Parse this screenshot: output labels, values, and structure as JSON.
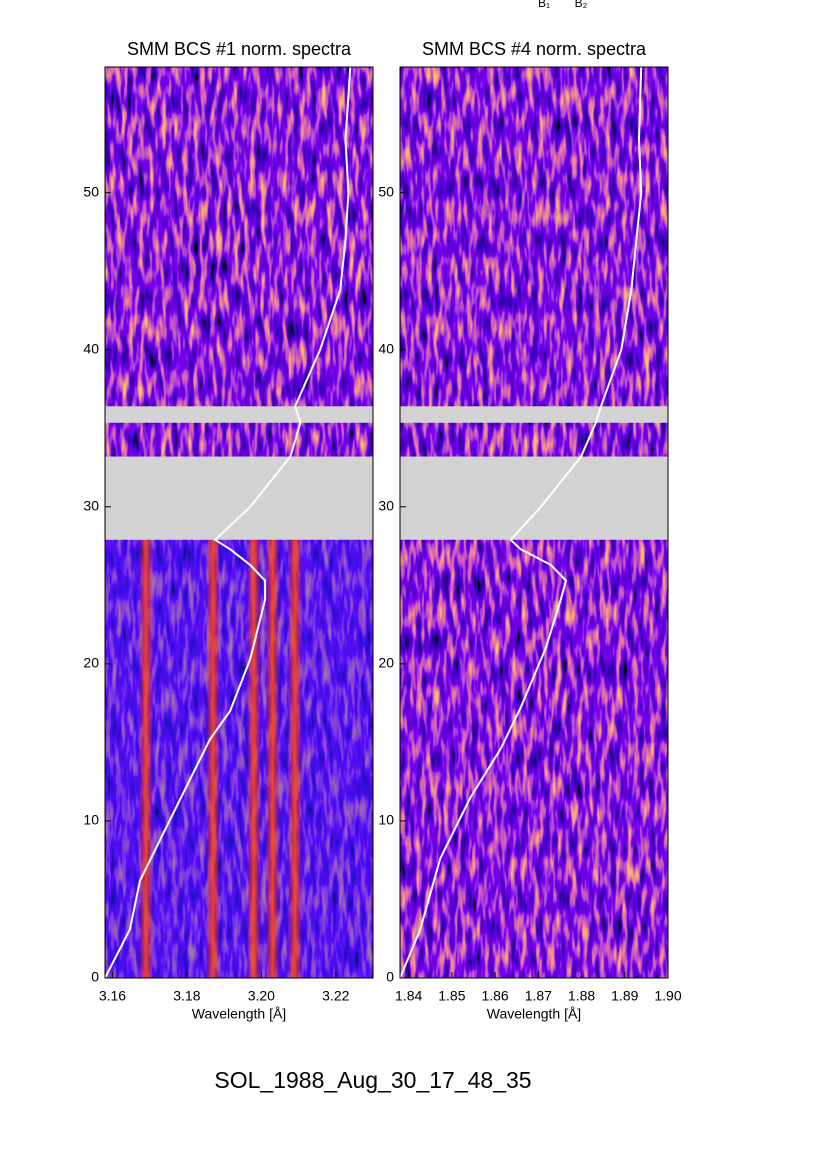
{
  "top_labels": [
    "B₁",
    "B₂"
  ],
  "footer": "SOL_1988_Aug_30_17_48_35",
  "chart_data": [
    {
      "type": "spectrogram",
      "title": "SMM BCS #1 norm. spectra",
      "x_label": "Wavelength [Å]",
      "xlim": [
        3.158,
        3.23
      ],
      "xticks": [
        3.16,
        3.18,
        {
          "value": 3.2,
          "label": "3.20"
        },
        3.22
      ],
      "ylim": [
        0,
        58
      ],
      "yticks": [
        0,
        10,
        20,
        30,
        40,
        50
      ],
      "gaps": [
        [
          27.9,
          33.2
        ],
        [
          35.35,
          36.4
        ]
      ],
      "gap_color": "#d3d3d3",
      "line_centers": [
        3.169,
        3.187,
        3.198,
        3.203,
        3.209
      ],
      "curve": {
        "color": "#ffffff",
        "x": [
          3.158,
          3.1647,
          3.1674,
          3.1728,
          3.1795,
          3.1862,
          3.1916,
          3.197,
          3.201,
          3.201,
          3.197,
          3.1916,
          3.1876,
          3.197,
          3.2078,
          3.2105,
          3.2091,
          3.2158,
          3.2212,
          3.2226,
          3.2234,
          3.2226,
          3.2239
        ],
        "y": [
          0,
          3.1,
          6.2,
          8.8,
          12,
          15.2,
          17,
          20.3,
          24.1,
          25.3,
          26.3,
          27.3,
          27.9,
          30,
          33.2,
          35.35,
          36.4,
          40,
          43.8,
          47,
          50,
          53.4,
          58
        ]
      }
    },
    {
      "type": "spectrogram",
      "title": "SMM BCS #4 norm. spectra",
      "x_label": "Wavelength [Å]",
      "xlim": [
        1.838,
        1.9
      ],
      "xticks": [
        1.84,
        1.85,
        1.86,
        1.87,
        1.88,
        1.89,
        {
          "value": 1.9,
          "label": "1.90"
        }
      ],
      "ylim": [
        0,
        58
      ],
      "yticks": [
        0,
        10,
        20,
        30,
        40,
        50
      ],
      "gaps": [
        [
          27.9,
          33.2
        ],
        [
          35.35,
          36.4
        ]
      ],
      "gap_color": "#d3d3d3",
      "curve": {
        "color": "#ffffff",
        "x": [
          1.838,
          1.8427,
          1.8473,
          1.8543,
          1.8613,
          1.8659,
          1.8717,
          1.8752,
          1.8764,
          1.8729,
          1.8659,
          1.8636,
          1.8706,
          1.8799,
          1.8833,
          1.8845,
          1.8892,
          1.8915,
          1.8927,
          1.8938,
          1.8933,
          1.8938
        ],
        "y": [
          0,
          3.1,
          7.6,
          11.5,
          14.6,
          17.2,
          21,
          24.1,
          25.3,
          26.3,
          27.3,
          27.9,
          30,
          33.2,
          35.35,
          36.4,
          40,
          43.8,
          47,
          50,
          53.4,
          58
        ]
      }
    }
  ]
}
